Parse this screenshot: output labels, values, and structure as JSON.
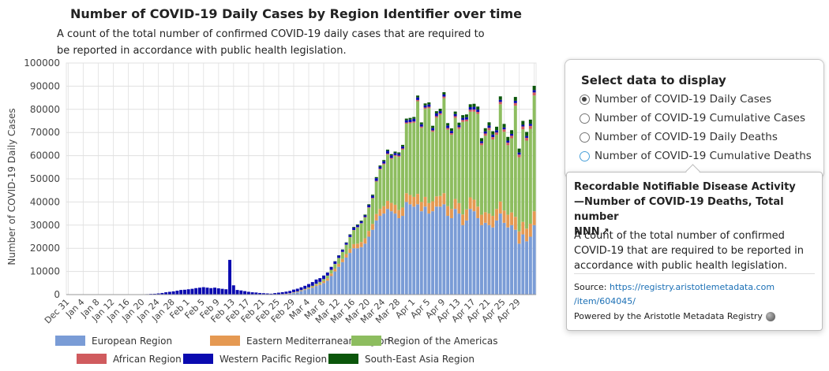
{
  "chart_data": {
    "type": "bar",
    "stacked": true,
    "title": "Number of COVID-19 Daily Cases by Region Identifier over time",
    "subtitle": "A count of the total number of confirmed COVID-19 daily cases that are required to be reported in accordance with public health legislation.",
    "ylabel": "Number of COVID-19 Daily Cases",
    "ylim": [
      0,
      100000
    ],
    "yticks": [
      0,
      10000,
      20000,
      30000,
      40000,
      50000,
      60000,
      70000,
      80000,
      90000,
      100000
    ],
    "xtick_labels": [
      "Dec 31",
      "Jan 4",
      "Jan 8",
      "Jan 12",
      "Jan 16",
      "Jan 20",
      "Jan 24",
      "Jan 28",
      "Feb 1",
      "Feb 5",
      "Feb 9",
      "Feb 13",
      "Feb 17",
      "Feb 21",
      "Feb 25",
      "Feb 29",
      "Mar 4",
      "Mar 8",
      "Mar 12",
      "Mar 16",
      "Mar 20",
      "Mar 24",
      "Mar 28",
      "Apr 1",
      "Apr 5",
      "Apr 9",
      "Apr 13",
      "Apr 17",
      "Apr 21",
      "Apr 25",
      "Apr 29"
    ],
    "grid": true,
    "legend_position": "bottom",
    "series": [
      {
        "name": "European Region",
        "color": "#7a9cd6",
        "values": [
          0,
          0,
          0,
          0,
          0,
          0,
          0,
          0,
          0,
          0,
          0,
          0,
          0,
          0,
          0,
          0,
          0,
          0,
          0,
          0,
          0,
          0,
          0,
          0,
          0,
          0,
          0,
          0,
          0,
          0,
          0,
          0,
          0,
          0,
          0,
          0,
          0,
          0,
          0,
          0,
          0,
          0,
          0,
          0,
          0,
          0,
          0,
          0,
          0,
          0,
          0,
          0,
          0,
          0,
          0,
          20,
          80,
          150,
          250,
          400,
          800,
          1000,
          1500,
          2000,
          2500,
          3000,
          3700,
          4200,
          5000,
          6000,
          8000,
          10000,
          12000,
          14000,
          16000,
          18000,
          20000,
          20000,
          20500,
          22000,
          25000,
          28000,
          32000,
          34000,
          35000,
          37000,
          36000,
          35000,
          33000,
          34000,
          40000,
          39000,
          38000,
          39000,
          36000,
          38000,
          35000,
          36000,
          38000,
          38000,
          39000,
          34000,
          33000,
          37000,
          35000,
          30000,
          32000,
          37000,
          36000,
          33000,
          30000,
          31000,
          30000,
          29000,
          32000,
          35000,
          31000,
          29000,
          30000,
          28000,
          22000,
          26000,
          23000,
          25000,
          30000
        ]
      },
      {
        "name": "Eastern Mediterranean Region",
        "color": "#e59952",
        "values": [
          0,
          0,
          0,
          0,
          0,
          0,
          0,
          0,
          0,
          0,
          0,
          0,
          0,
          0,
          0,
          0,
          0,
          0,
          0,
          0,
          0,
          0,
          0,
          0,
          0,
          0,
          0,
          0,
          0,
          0,
          0,
          0,
          0,
          0,
          0,
          0,
          0,
          0,
          0,
          0,
          0,
          0,
          0,
          0,
          0,
          0,
          0,
          0,
          0,
          0,
          0,
          0,
          0,
          0,
          0,
          30,
          50,
          80,
          100,
          150,
          200,
          250,
          300,
          300,
          350,
          400,
          500,
          600,
          800,
          1000,
          1100,
          1200,
          1300,
          1400,
          1500,
          1800,
          1800,
          2000,
          2200,
          2300,
          2500,
          2500,
          2800,
          3000,
          3200,
          3500,
          3600,
          3800,
          3500,
          3600,
          3800,
          4000,
          4200,
          4500,
          4000,
          4200,
          4500,
          4300,
          4400,
          4600,
          4800,
          4200,
          4000,
          4300,
          4500,
          4600,
          4800,
          5000,
          5000,
          5000,
          4500,
          4600,
          5000,
          5000,
          5000,
          5200,
          5300,
          5500,
          5500,
          5600,
          5300,
          5400,
          5500,
          5600,
          6000
        ]
      },
      {
        "name": "Region of the Americas",
        "color": "#8dbd5f",
        "values": [
          0,
          0,
          0,
          0,
          0,
          0,
          0,
          0,
          0,
          0,
          0,
          0,
          0,
          0,
          0,
          0,
          0,
          0,
          0,
          0,
          0,
          0,
          0,
          0,
          0,
          0,
          0,
          0,
          0,
          0,
          0,
          0,
          0,
          0,
          0,
          0,
          0,
          0,
          0,
          0,
          0,
          0,
          0,
          0,
          0,
          0,
          0,
          0,
          0,
          0,
          0,
          0,
          0,
          0,
          0,
          0,
          10,
          20,
          30,
          40,
          60,
          100,
          150,
          200,
          300,
          400,
          500,
          700,
          900,
          1200,
          1600,
          2000,
          2500,
          3000,
          4000,
          5000,
          6000,
          7000,
          8000,
          9000,
          10000,
          11000,
          14000,
          17000,
          18000,
          20000,
          19000,
          21000,
          23000,
          25000,
          30000,
          31000,
          32000,
          40000,
          32000,
          38000,
          41000,
          30000,
          34000,
          35000,
          41000,
          33000,
          32000,
          35000,
          32000,
          40000,
          38000,
          37000,
          38000,
          40000,
          30000,
          33000,
          36000,
          33000,
          32000,
          42000,
          34000,
          30000,
          32000,
          48000,
          32000,
          40000,
          38000,
          41000,
          50000
        ]
      },
      {
        "name": "African Region",
        "color": "#d05b5e",
        "values": [
          0,
          0,
          0,
          0,
          0,
          0,
          0,
          0,
          0,
          0,
          0,
          0,
          0,
          0,
          0,
          0,
          0,
          0,
          0,
          0,
          0,
          0,
          0,
          0,
          0,
          0,
          0,
          0,
          0,
          0,
          0,
          0,
          0,
          0,
          0,
          0,
          0,
          0,
          0,
          0,
          0,
          0,
          0,
          0,
          0,
          0,
          0,
          0,
          0,
          0,
          0,
          0,
          0,
          0,
          0,
          0,
          0,
          0,
          0,
          0,
          0,
          0,
          0,
          0,
          0,
          0,
          0,
          0,
          0,
          10,
          20,
          30,
          40,
          50,
          60,
          80,
          100,
          120,
          150,
          200,
          200,
          250,
          300,
          350,
          400,
          400,
          400,
          450,
          500,
          500,
          500,
          500,
          550,
          550,
          550,
          600,
          600,
          600,
          650,
          650,
          700,
          700,
          700,
          750,
          800,
          800,
          800,
          850,
          900,
          900,
          900,
          950,
          1000,
          1000,
          1000,
          1000,
          1050,
          1100,
          1100,
          1100,
          1150,
          1200,
          1200,
          1250,
          1300
        ]
      },
      {
        "name": "Western Pacific Region",
        "color": "#0a0ab0",
        "values": [
          0,
          0,
          0,
          0,
          0,
          0,
          0,
          0,
          0,
          0,
          0,
          0,
          0,
          0,
          0,
          20,
          30,
          50,
          80,
          100,
          150,
          200,
          300,
          350,
          500,
          700,
          1000,
          1200,
          1400,
          1700,
          2000,
          2100,
          2300,
          2500,
          2800,
          3000,
          3200,
          3000,
          2800,
          3000,
          2700,
          2500,
          2300,
          15000,
          4000,
          2000,
          1800,
          1500,
          1200,
          1000,
          900,
          700,
          600,
          500,
          400,
          600,
          700,
          800,
          900,
          1000,
          1100,
          1200,
          1200,
          1300,
          1400,
          1600,
          1800,
          1600,
          1500,
          1300,
          1200,
          1100,
          1000,
          900,
          800,
          900,
          1000,
          900,
          800,
          700,
          900,
          1000,
          1200,
          900,
          1000,
          1200,
          1100,
          900,
          800,
          900,
          1000,
          1100,
          1200,
          1100,
          1000,
          900,
          1000,
          1100,
          1200,
          1000,
          900,
          1100,
          1000,
          900,
          800,
          900,
          1000,
          1100,
          1200,
          1000,
          800,
          900,
          1000,
          1100,
          1000,
          900,
          800,
          900,
          800,
          1000,
          900,
          700,
          800,
          900,
          1000
        ]
      },
      {
        "name": "South-East Asia Region",
        "color": "#0b560b",
        "values": [
          0,
          0,
          0,
          0,
          0,
          0,
          0,
          0,
          0,
          0,
          0,
          0,
          0,
          0,
          0,
          0,
          0,
          0,
          0,
          0,
          0,
          0,
          0,
          0,
          0,
          0,
          0,
          0,
          0,
          0,
          0,
          0,
          0,
          0,
          0,
          0,
          0,
          0,
          0,
          0,
          0,
          0,
          0,
          0,
          0,
          0,
          0,
          0,
          0,
          0,
          0,
          0,
          0,
          0,
          0,
          0,
          0,
          0,
          0,
          0,
          0,
          0,
          0,
          0,
          0,
          10,
          20,
          30,
          50,
          60,
          80,
          100,
          120,
          150,
          200,
          250,
          300,
          300,
          300,
          350,
          400,
          400,
          450,
          500,
          500,
          500,
          550,
          600,
          600,
          650,
          700,
          700,
          750,
          800,
          800,
          850,
          900,
          900,
          950,
          1000,
          1000,
          1050,
          1100,
          1100,
          1150,
          1200,
          1200,
          1250,
          1300,
          1300,
          1350,
          1400,
          1400,
          1450,
          1500,
          1500,
          1550,
          1600,
          1600,
          1650,
          1700,
          1700,
          1750,
          1800,
          1850
        ]
      }
    ]
  },
  "panel": {
    "title": "Select data to display",
    "options": [
      "Number of COVID-19 Daily Cases",
      "Number of COVID-19 Cumulative Cases",
      "Number of COVID-19 Daily Deaths",
      "Number of COVID-19 Cumulative Deaths"
    ]
  },
  "tooltip": {
    "title_line1": "Recordable Notifiable Disease Activity",
    "title_line2": "—Number of COVID-19 Deaths, Total number",
    "title_line3": "NNN",
    "description": "A count of the total number of confirmed COVID-19 that are required to be reported in accordance with public health legislation.",
    "source_label": "Source:",
    "source_url_1": "https://registry.aristotlemetadata.com",
    "source_url_2": "/item/604045/",
    "powered_by": "Powered by the Aristotle Metadata Registry"
  }
}
